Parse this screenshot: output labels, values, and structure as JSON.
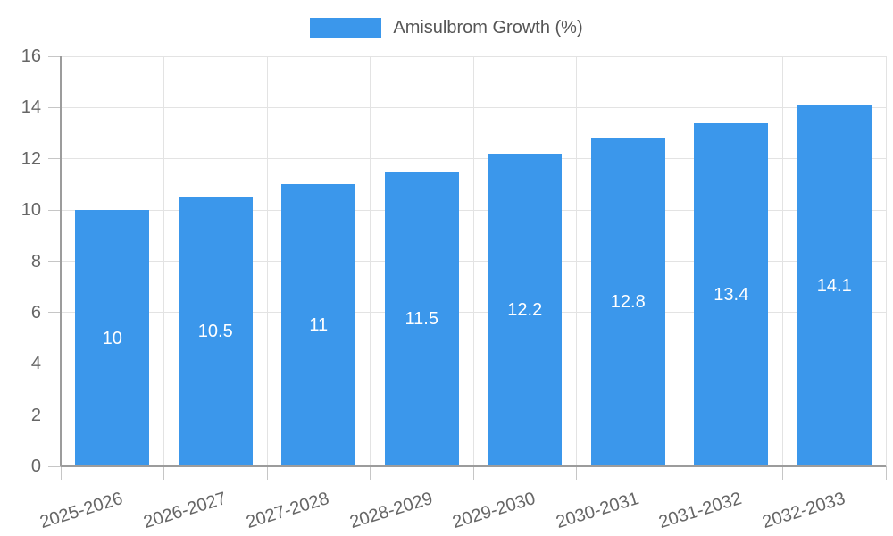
{
  "chart_data": {
    "type": "bar",
    "title": "Amisulbrom Growth (%)",
    "legend": [
      {
        "label": "Amisulbrom Growth (%)",
        "color": "#3B97EB"
      }
    ],
    "legend_position": "top",
    "categories": [
      "2025-2026",
      "2026-2027",
      "2027-2028",
      "2028-2029",
      "2029-2030",
      "2030-2031",
      "2031-2032",
      "2032-2033"
    ],
    "values": [
      10,
      10.5,
      11,
      11.5,
      12.2,
      12.8,
      13.4,
      14.1
    ],
    "value_labels": [
      "10",
      "10.5",
      "11",
      "11.5",
      "12.2",
      "12.8",
      "13.4",
      "14.1"
    ],
    "xlabel": "",
    "ylabel": "",
    "ylim": [
      0,
      16
    ],
    "y_ticks": [
      0,
      2,
      4,
      6,
      8,
      10,
      12,
      14,
      16
    ],
    "grid": true,
    "colors": {
      "bar": "#3B97EB",
      "bar_value_text": "#FFFFFF",
      "axis_text": "#666666",
      "legend_text": "#555555",
      "gridline": "#E3E3E3",
      "axis_line": "#9C9C9C",
      "tick_mark": "#C6C6C6",
      "background": "#FFFFFF"
    }
  }
}
